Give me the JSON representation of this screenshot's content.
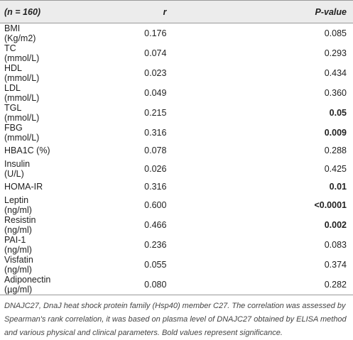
{
  "table": {
    "header": [
      "(n = 160)",
      "r",
      "P-value"
    ],
    "rows": [
      {
        "cells": [
          "BMI (Kg/m2)",
          "0.176",
          "0.085"
        ],
        "bold_p": false
      },
      {
        "cells": [
          "TC (mmol/L)",
          "0.074",
          "0.293"
        ],
        "bold_p": false
      },
      {
        "cells": [
          "HDL (mmol/L)",
          "0.023",
          "0.434"
        ],
        "bold_p": false
      },
      {
        "cells": [
          "LDL (mmol/L)",
          "0.049",
          "0.360"
        ],
        "bold_p": false
      },
      {
        "cells": [
          "TGL (mmol/L)",
          "0.215",
          "0.05"
        ],
        "bold_p": true
      },
      {
        "cells": [
          "FBG (mmol/L)",
          "0.316",
          "0.009"
        ],
        "bold_p": true
      },
      {
        "cells": [
          "HBA1C (%)",
          "0.078",
          "0.288"
        ],
        "bold_p": false
      },
      {
        "cells": [
          "Insulin (U/L)",
          "0.026",
          "0.425"
        ],
        "bold_p": false
      },
      {
        "cells": [
          "HOMA-IR",
          "0.316",
          "0.01"
        ],
        "bold_p": true
      },
      {
        "cells": [
          "Leptin (ng/ml)",
          "0.600",
          "<0.0001"
        ],
        "bold_p": true
      },
      {
        "cells": [
          "Resistin (ng/ml)",
          "0.466",
          "0.002"
        ],
        "bold_p": true
      },
      {
        "cells": [
          "PAI-1 (ng/ml)",
          "0.236",
          "0.083"
        ],
        "bold_p": false
      },
      {
        "cells": [
          "Visfatin (ng/ml)",
          "0.055",
          "0.374"
        ],
        "bold_p": false
      },
      {
        "cells": [
          "Adiponectin (µg/ml)",
          "0.080",
          "0.282"
        ],
        "bold_p": false
      }
    ],
    "footnote": "DNAJC27, DnaJ heat shock protein family (Hsp40) member C27. The correlation was assessed by Spearman's rank correlation, it was based on plasma level of DNAJC27 obtained by ELISA method and various physical and clinical parameters. Bold values represent significance."
  }
}
